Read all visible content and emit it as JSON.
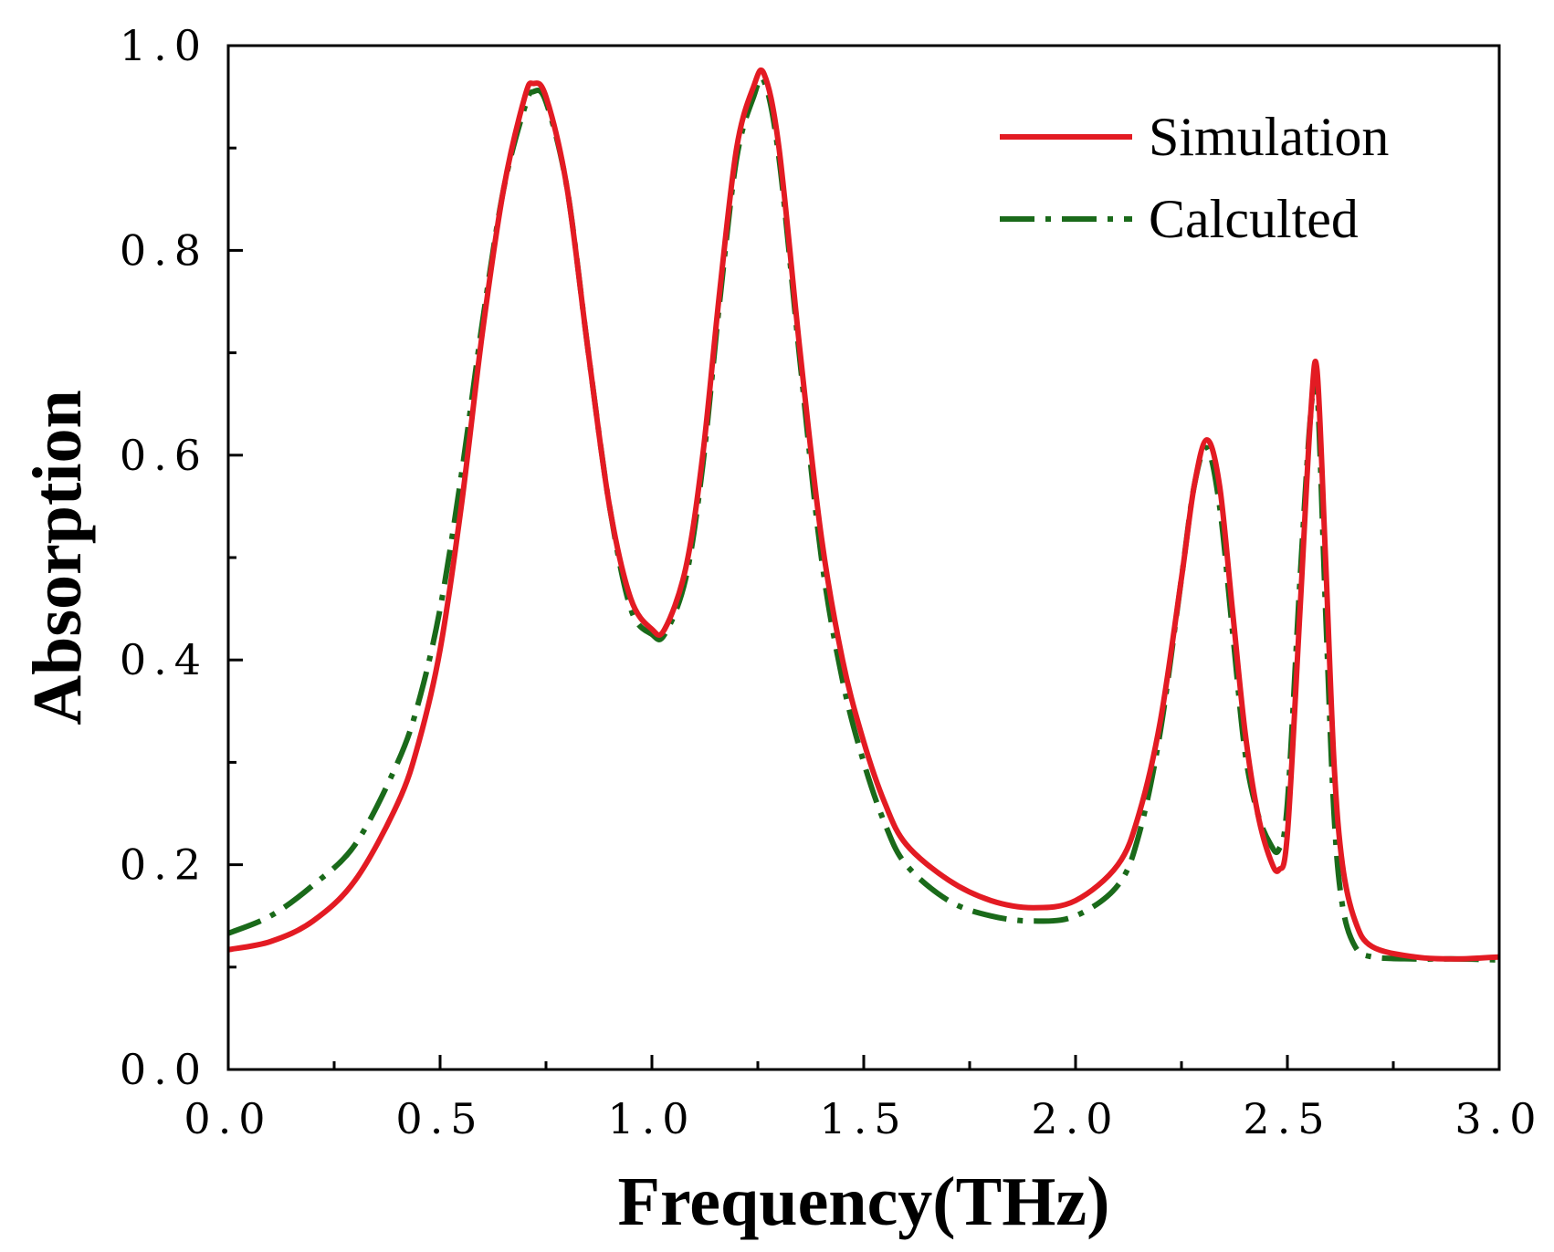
{
  "chart_data": {
    "type": "line",
    "title": "",
    "xlabel": "Frequency(THz)",
    "ylabel": "Absorption",
    "xlim": [
      0,
      3
    ],
    "ylim": [
      0,
      1
    ],
    "xticks": [
      0,
      0.5,
      1,
      1.5,
      2,
      2.5,
      3
    ],
    "yticks": [
      0,
      0.2,
      0.4,
      0.6,
      0.8,
      1
    ],
    "xtick_labels": [
      "0.0",
      "0.5",
      "1.0",
      "1.5",
      "2.0",
      "2.5",
      "3.0"
    ],
    "ytick_labels": [
      "0.0",
      "0.2",
      "0.4",
      "0.6",
      "0.8",
      "1.0"
    ],
    "grid": false,
    "legend_position": "top-right",
    "series": [
      {
        "name": "Simulation",
        "color": "#e31b23",
        "style": "solid",
        "x": [
          0,
          0.1,
          0.2,
          0.3,
          0.4,
          0.45,
          0.5,
          0.55,
          0.6,
          0.65,
          0.7,
          0.72,
          0.75,
          0.8,
          0.85,
          0.9,
          0.95,
          1.0,
          1.03,
          1.08,
          1.12,
          1.16,
          1.2,
          1.24,
          1.265,
          1.3,
          1.35,
          1.4,
          1.45,
          1.5,
          1.55,
          1.6,
          1.7,
          1.8,
          1.9,
          2.0,
          2.1,
          2.15,
          2.2,
          2.25,
          2.28,
          2.31,
          2.34,
          2.37,
          2.4,
          2.43,
          2.46,
          2.48,
          2.5,
          2.53,
          2.555,
          2.57,
          2.59,
          2.61,
          2.63,
          2.66,
          2.7,
          2.8,
          2.9,
          3.0
        ],
        "y": [
          0.117,
          0.125,
          0.145,
          0.185,
          0.26,
          0.32,
          0.41,
          0.55,
          0.72,
          0.86,
          0.95,
          0.963,
          0.95,
          0.86,
          0.7,
          0.55,
          0.46,
          0.43,
          0.43,
          0.49,
          0.6,
          0.76,
          0.9,
          0.96,
          0.972,
          0.9,
          0.7,
          0.52,
          0.4,
          0.32,
          0.26,
          0.22,
          0.185,
          0.165,
          0.158,
          0.165,
          0.2,
          0.25,
          0.34,
          0.48,
          0.57,
          0.615,
          0.57,
          0.45,
          0.33,
          0.25,
          0.205,
          0.195,
          0.23,
          0.45,
          0.64,
          0.683,
          0.5,
          0.3,
          0.2,
          0.145,
          0.12,
          0.11,
          0.108,
          0.11
        ]
      },
      {
        "name": "Calculted",
        "color": "#1a6a1a",
        "style": "dashdot",
        "x": [
          0,
          0.1,
          0.2,
          0.3,
          0.4,
          0.45,
          0.5,
          0.55,
          0.6,
          0.65,
          0.7,
          0.72,
          0.75,
          0.8,
          0.85,
          0.9,
          0.95,
          1.0,
          1.03,
          1.08,
          1.12,
          1.16,
          1.2,
          1.24,
          1.265,
          1.3,
          1.35,
          1.4,
          1.45,
          1.5,
          1.55,
          1.6,
          1.7,
          1.8,
          1.9,
          2.0,
          2.1,
          2.15,
          2.2,
          2.25,
          2.28,
          2.31,
          2.34,
          2.37,
          2.4,
          2.43,
          2.46,
          2.48,
          2.5,
          2.53,
          2.555,
          2.57,
          2.59,
          2.61,
          2.63,
          2.66,
          2.7,
          2.8,
          2.9,
          3.0
        ],
        "y": [
          0.133,
          0.15,
          0.18,
          0.22,
          0.3,
          0.36,
          0.45,
          0.58,
          0.73,
          0.86,
          0.94,
          0.955,
          0.945,
          0.86,
          0.7,
          0.55,
          0.45,
          0.425,
          0.425,
          0.48,
          0.59,
          0.75,
          0.89,
          0.95,
          0.965,
          0.89,
          0.69,
          0.5,
          0.38,
          0.3,
          0.24,
          0.2,
          0.165,
          0.15,
          0.145,
          0.15,
          0.18,
          0.23,
          0.33,
          0.48,
          0.57,
          0.607,
          0.55,
          0.43,
          0.31,
          0.25,
          0.22,
          0.215,
          0.26,
          0.48,
          0.64,
          0.665,
          0.45,
          0.25,
          0.16,
          0.12,
          0.11,
          0.108,
          0.108,
          0.107
        ]
      }
    ]
  }
}
